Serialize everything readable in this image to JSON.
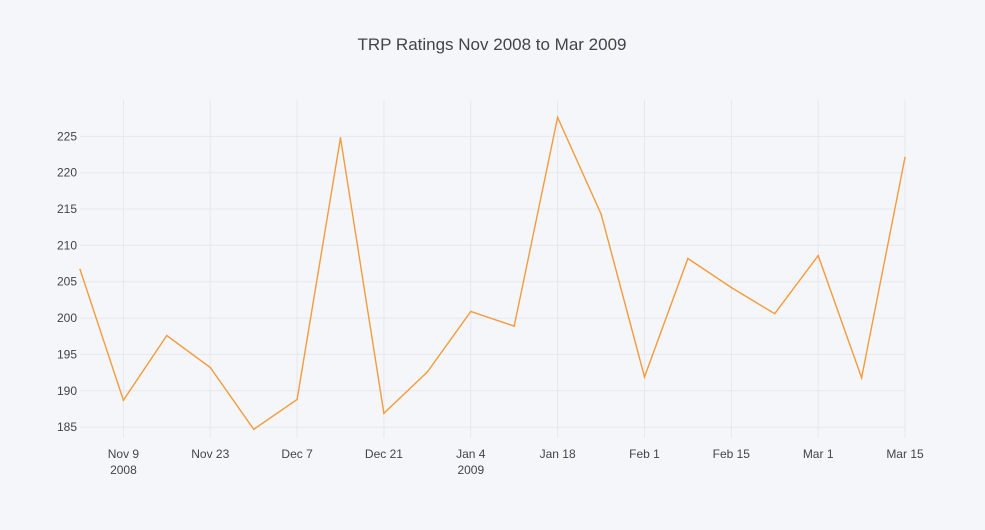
{
  "chart_data": {
    "type": "line",
    "title": "TRP Ratings Nov 2008 to Mar 2009",
    "xlabel": "",
    "ylabel": "",
    "xlim": [
      "2008-11-02",
      "2009-03-15"
    ],
    "ylim": [
      183.5,
      230
    ],
    "x_ticks": [
      {
        "date": "2008-11-09",
        "label": "Nov 9",
        "sublabel": "2008"
      },
      {
        "date": "2008-11-23",
        "label": "Nov 23",
        "sublabel": ""
      },
      {
        "date": "2008-12-07",
        "label": "Dec 7",
        "sublabel": ""
      },
      {
        "date": "2008-12-21",
        "label": "Dec 21",
        "sublabel": ""
      },
      {
        "date": "2009-01-04",
        "label": "Jan 4",
        "sublabel": "2009"
      },
      {
        "date": "2009-01-18",
        "label": "Jan 18",
        "sublabel": ""
      },
      {
        "date": "2009-02-01",
        "label": "Feb 1",
        "sublabel": ""
      },
      {
        "date": "2009-02-15",
        "label": "Feb 15",
        "sublabel": ""
      },
      {
        "date": "2009-03-01",
        "label": "Mar 1",
        "sublabel": ""
      },
      {
        "date": "2009-03-15",
        "label": "Mar 15",
        "sublabel": ""
      }
    ],
    "y_ticks": [
      185,
      190,
      195,
      200,
      205,
      210,
      215,
      220,
      225
    ],
    "grid": true,
    "series": [
      {
        "color": "#f39b3d",
        "x": [
          "2008-11-02",
          "2008-11-09",
          "2008-11-16",
          "2008-11-23",
          "2008-11-30",
          "2008-12-07",
          "2008-12-14",
          "2008-12-21",
          "2008-12-28",
          "2009-01-04",
          "2009-01-11",
          "2009-01-18",
          "2009-01-25",
          "2009-02-01",
          "2009-02-08",
          "2009-02-15",
          "2009-02-22",
          "2009-03-01",
          "2009-03-08",
          "2009-03-15"
        ],
        "values": [
          206.7,
          188.7,
          197.6,
          193.2,
          184.7,
          188.8,
          224.8,
          186.9,
          192.6,
          200.9,
          198.9,
          227.6,
          214.3,
          191.9,
          208.2,
          204.2,
          200.6,
          208.6,
          191.8,
          222.1
        ]
      }
    ]
  }
}
